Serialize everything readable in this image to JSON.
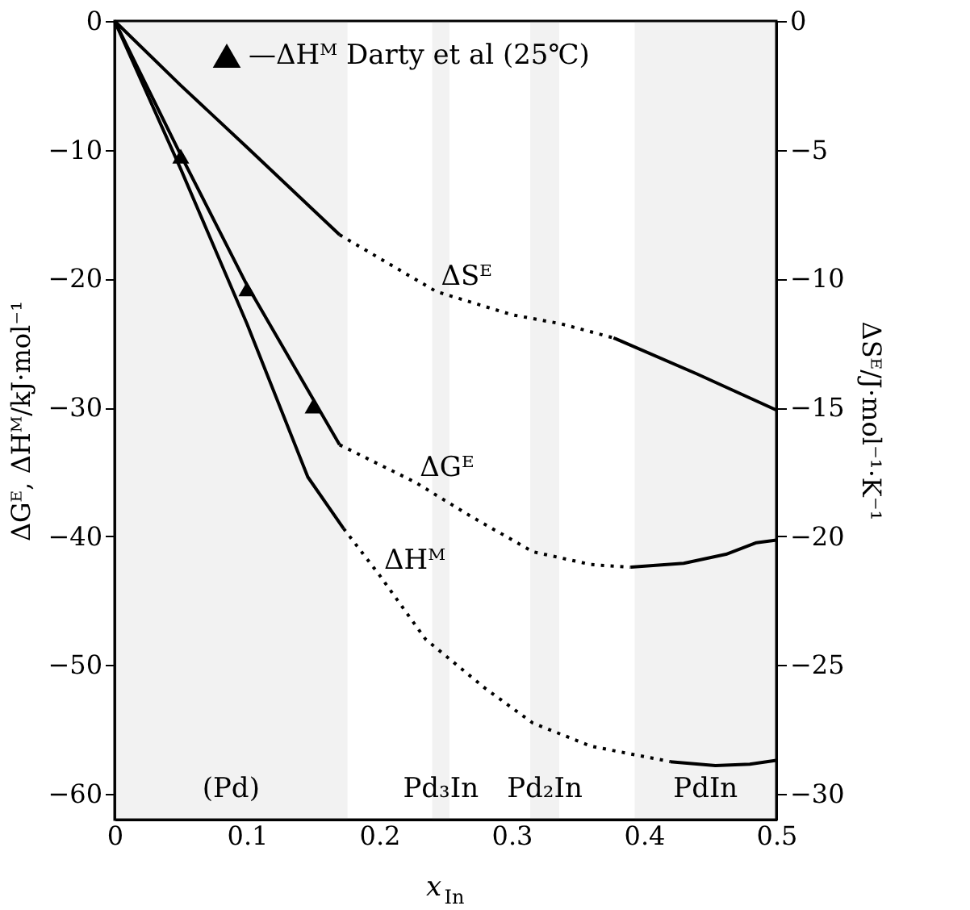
{
  "chart_data": {
    "type": "line",
    "xlabel": "x$_{In}$",
    "ylabel": "ΔGᴱ, ΔHᴹ/kJ·mol⁻¹",
    "y2label": "ΔSᴱ/J·mol⁻¹·K⁻¹",
    "xlim": [
      0,
      0.5
    ],
    "xticks": [
      0,
      0.1,
      0.2,
      0.3,
      0.4,
      0.5
    ],
    "ylim": [
      -62,
      0
    ],
    "yticks": [
      0,
      -10,
      -20,
      -30,
      -40,
      -50,
      -60
    ],
    "y2lim": [
      -31,
      0
    ],
    "y2ticks": [
      0,
      -5,
      -10,
      -15,
      -20,
      -25,
      -30
    ],
    "grid": false,
    "legend": "top",
    "series": [
      {
        "color": "#000000",
        "line_style": "solid",
        "axis": "y2",
        "x": [
          0,
          0.05,
          0.1,
          0.17
        ],
        "values": [
          0,
          -2.5,
          -4.9,
          -8.3
        ]
      },
      {
        "name": "ΔSᴱ",
        "color": "#000000",
        "line_style": "dotted",
        "axis": "y2",
        "x": [
          0.17,
          0.243,
          0.3,
          0.337,
          0.377
        ],
        "values": [
          -8.3,
          -10.5,
          -11.4,
          -11.75,
          -12.3
        ]
      },
      {
        "color": "#000000",
        "line_style": "solid",
        "axis": "y2",
        "x": [
          0.377,
          0.44,
          0.5
        ],
        "values": [
          -12.3,
          -13.7,
          -15.1
        ]
      },
      {
        "color": "#000000",
        "line_style": "solid",
        "x": [
          0,
          0.05,
          0.1,
          0.17
        ],
        "values": [
          0,
          -10.4,
          -20.5,
          -32.9
        ]
      },
      {
        "name": "ΔGᴱ",
        "color": "#000000",
        "line_style": "dotted",
        "x": [
          0.17,
          0.227,
          0.27,
          0.316,
          0.36,
          0.39
        ],
        "values": [
          -32.9,
          -35.8,
          -38.5,
          -41.2,
          -42.2,
          -42.4
        ]
      },
      {
        "color": "#000000",
        "line_style": "solid",
        "x": [
          0.39,
          0.43,
          0.462,
          0.485,
          0.5
        ],
        "values": [
          -42.4,
          -42.1,
          -41.4,
          -40.5,
          -40.3
        ]
      },
      {
        "color": "#000000",
        "line_style": "solid",
        "x": [
          0,
          0.05,
          0.1,
          0.146,
          0.173
        ],
        "values": [
          0,
          -11.5,
          -23.5,
          -35.4,
          -39.4
        ]
      },
      {
        "name": "ΔHᴹ",
        "color": "#000000",
        "line_style": "dotted",
        "x": [
          0.173,
          0.2,
          0.235,
          0.28,
          0.316,
          0.36,
          0.42
        ],
        "values": [
          -39.4,
          -43,
          -48,
          -51.8,
          -54.5,
          -56.3,
          -57.5
        ]
      },
      {
        "color": "#000000",
        "line_style": "solid",
        "x": [
          0.42,
          0.454,
          0.48,
          0.5
        ],
        "values": [
          -57.5,
          -57.8,
          -57.7,
          -57.4
        ]
      },
      {
        "type": "scatter",
        "name": "—ΔHᴹ Darty et al (25℃)",
        "color": "#000000",
        "marker": "triangle",
        "x": [
          0.05,
          0.1,
          0.15
        ],
        "values": [
          -10.5,
          -20.8,
          -29.9
        ]
      }
    ],
    "bands": [
      {
        "axis": "x",
        "from": 0,
        "to": 0.176,
        "label": "(Pd)",
        "color": "#555555"
      },
      {
        "axis": "x",
        "from": 0.24,
        "to": 0.253,
        "label": "Pd₃In",
        "color": "#555555"
      },
      {
        "axis": "x",
        "from": 0.314,
        "to": 0.336,
        "label": "Pd₂In",
        "color": "#555555"
      },
      {
        "axis": "x",
        "from": 0.393,
        "to": 0.5,
        "label": "PdIn",
        "color": "#555555"
      }
    ]
  }
}
